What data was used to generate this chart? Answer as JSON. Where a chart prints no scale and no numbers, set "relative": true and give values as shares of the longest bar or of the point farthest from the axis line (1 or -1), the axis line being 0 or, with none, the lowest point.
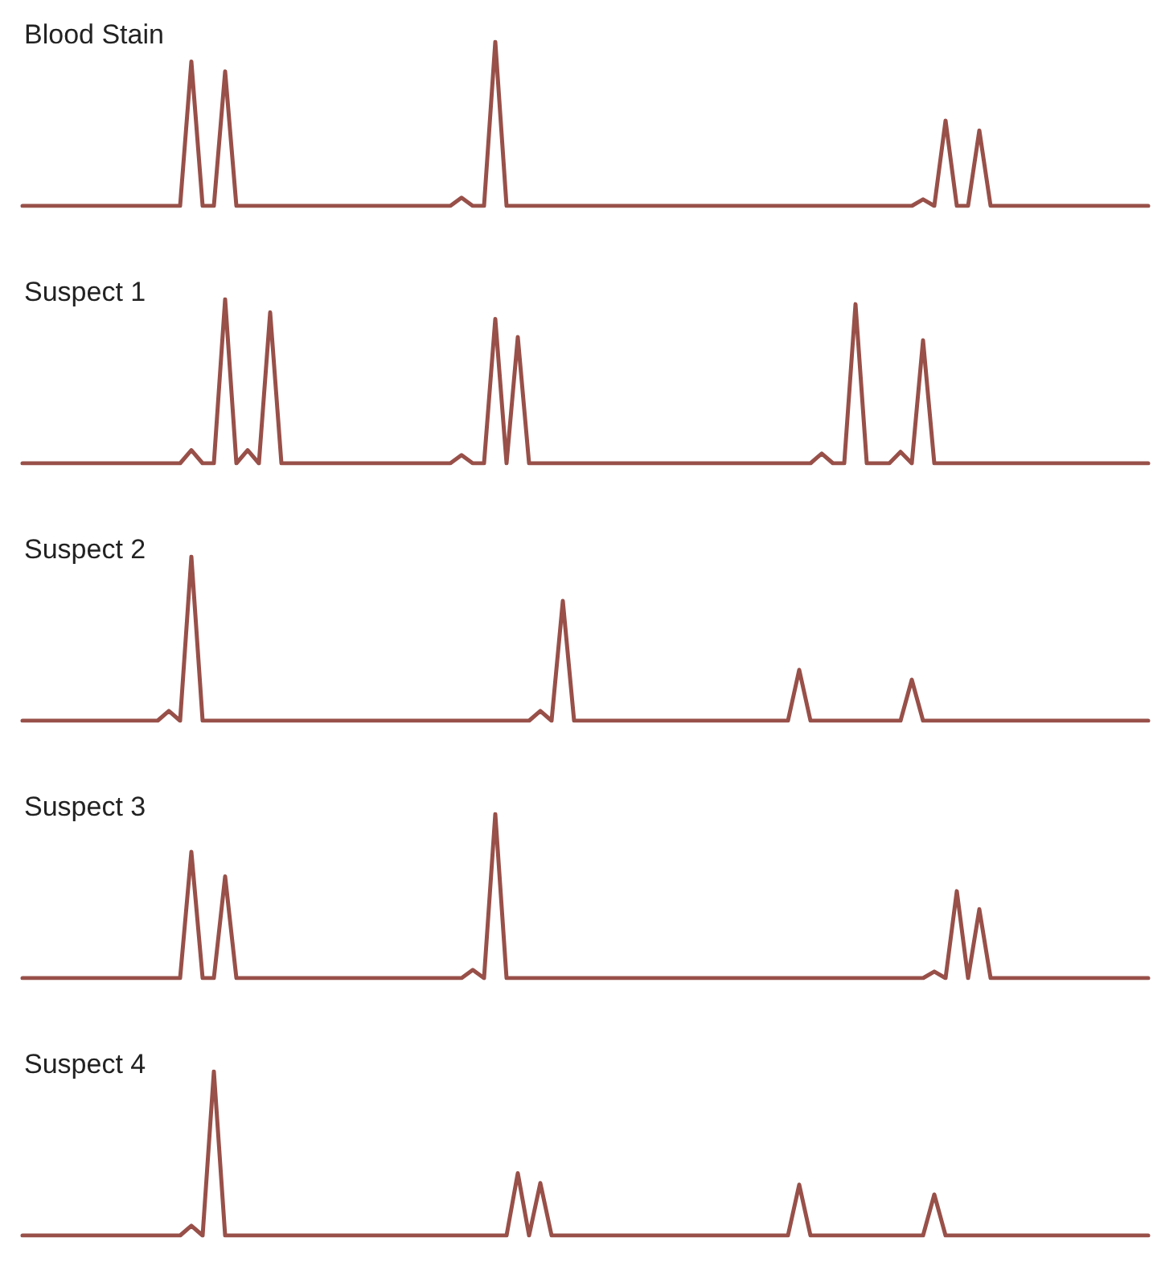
{
  "chart_data": [
    {
      "type": "line",
      "title": "Blood Stain",
      "relative": true,
      "color": "#985049",
      "categories": [
        null,
        null,
        null,
        null,
        null,
        null,
        null,
        null,
        null,
        null,
        null,
        null,
        null,
        null,
        null,
        null,
        null,
        null,
        null,
        null,
        null,
        null,
        null,
        null,
        null,
        null,
        null,
        null,
        null,
        null,
        null,
        null,
        null,
        null,
        null,
        null,
        null,
        null,
        null,
        null,
        null,
        null,
        null,
        null,
        null,
        null,
        null,
        null,
        null,
        null,
        null,
        null,
        null,
        null,
        null,
        null,
        null,
        null,
        null,
        null,
        null,
        null,
        null,
        null,
        null,
        null,
        null,
        null,
        null,
        null,
        null,
        null,
        null,
        null,
        null,
        null,
        null,
        null,
        null,
        null,
        null,
        null,
        null,
        null,
        null,
        null,
        null,
        null,
        null,
        null,
        null,
        null,
        null,
        null,
        null,
        null,
        null,
        null,
        null,
        null,
        null
      ],
      "values": [
        0,
        0,
        0,
        0,
        0,
        0,
        0,
        0,
        0,
        0,
        0,
        0,
        0,
        0,
        0,
        0.88,
        0,
        0,
        0.82,
        0,
        0,
        0,
        0,
        0,
        0,
        0,
        0,
        0,
        0,
        0,
        0,
        0,
        0,
        0,
        0,
        0,
        0,
        0,
        0,
        0.05,
        0,
        0,
        1,
        0,
        0,
        0,
        0,
        0,
        0,
        0,
        0,
        0,
        0,
        0,
        0,
        0,
        0,
        0,
        0,
        0,
        0,
        0,
        0,
        0,
        0,
        0,
        0,
        0,
        0,
        0,
        0,
        0,
        0,
        0,
        0,
        0,
        0,
        0,
        0,
        0,
        0.04,
        0,
        0.52,
        0,
        0,
        0.46,
        0,
        0,
        0,
        0,
        0,
        0,
        0,
        0,
        0,
        0,
        0,
        0,
        0,
        0,
        0
      ]
    },
    {
      "type": "line",
      "title": "Suspect 1",
      "relative": true,
      "color": "#985049",
      "categories": [
        null,
        null,
        null,
        null,
        null,
        null,
        null,
        null,
        null,
        null,
        null,
        null,
        null,
        null,
        null,
        null,
        null,
        null,
        null,
        null,
        null,
        null,
        null,
        null,
        null,
        null,
        null,
        null,
        null,
        null,
        null,
        null,
        null,
        null,
        null,
        null,
        null,
        null,
        null,
        null,
        null,
        null,
        null,
        null,
        null,
        null,
        null,
        null,
        null,
        null,
        null,
        null,
        null,
        null,
        null,
        null,
        null,
        null,
        null,
        null,
        null,
        null,
        null,
        null,
        null,
        null,
        null,
        null,
        null,
        null,
        null,
        null,
        null,
        null,
        null,
        null,
        null,
        null,
        null,
        null,
        null,
        null,
        null,
        null,
        null,
        null,
        null,
        null,
        null,
        null,
        null,
        null,
        null,
        null,
        null,
        null,
        null,
        null,
        null,
        null,
        null
      ],
      "values": [
        0,
        0,
        0,
        0,
        0,
        0,
        0,
        0,
        0,
        0,
        0,
        0,
        0,
        0,
        0,
        0.08,
        0,
        0,
        1,
        0,
        0.08,
        0,
        0.92,
        0,
        0,
        0,
        0,
        0,
        0,
        0,
        0,
        0,
        0,
        0,
        0,
        0,
        0,
        0,
        0,
        0.05,
        0,
        0,
        0.88,
        0,
        0.77,
        0,
        0,
        0,
        0,
        0,
        0,
        0,
        0,
        0,
        0,
        0,
        0,
        0,
        0,
        0,
        0,
        0,
        0,
        0,
        0,
        0,
        0,
        0,
        0,
        0,
        0,
        0.06,
        0,
        0,
        0.97,
        0,
        0,
        0,
        0.07,
        0,
        0.75,
        0,
        0,
        0,
        0,
        0,
        0,
        0,
        0,
        0,
        0,
        0,
        0,
        0,
        0,
        0,
        0,
        0,
        0,
        0,
        0
      ]
    },
    {
      "type": "line",
      "title": "Suspect 2",
      "relative": true,
      "color": "#985049",
      "categories": [
        null,
        null,
        null,
        null,
        null,
        null,
        null,
        null,
        null,
        null,
        null,
        null,
        null,
        null,
        null,
        null,
        null,
        null,
        null,
        null,
        null,
        null,
        null,
        null,
        null,
        null,
        null,
        null,
        null,
        null,
        null,
        null,
        null,
        null,
        null,
        null,
        null,
        null,
        null,
        null,
        null,
        null,
        null,
        null,
        null,
        null,
        null,
        null,
        null,
        null,
        null,
        null,
        null,
        null,
        null,
        null,
        null,
        null,
        null,
        null,
        null,
        null,
        null,
        null,
        null,
        null,
        null,
        null,
        null,
        null,
        null,
        null,
        null,
        null,
        null,
        null,
        null,
        null,
        null,
        null,
        null,
        null,
        null,
        null,
        null,
        null,
        null,
        null,
        null,
        null,
        null,
        null,
        null,
        null,
        null,
        null,
        null,
        null,
        null,
        null,
        null
      ],
      "values": [
        0,
        0,
        0,
        0,
        0,
        0,
        0,
        0,
        0,
        0,
        0,
        0,
        0,
        0.06,
        0,
        1,
        0,
        0,
        0,
        0,
        0,
        0,
        0,
        0,
        0,
        0,
        0,
        0,
        0,
        0,
        0,
        0,
        0,
        0,
        0,
        0,
        0,
        0,
        0,
        0,
        0,
        0,
        0,
        0,
        0,
        0,
        0.06,
        0,
        0.73,
        0,
        0,
        0,
        0,
        0,
        0,
        0,
        0,
        0,
        0,
        0,
        0,
        0,
        0,
        0,
        0,
        0,
        0,
        0,
        0,
        0.31,
        0,
        0,
        0,
        0,
        0,
        0,
        0,
        0,
        0,
        0.25,
        0,
        0,
        0,
        0,
        0,
        0,
        0,
        0,
        0,
        0,
        0,
        0,
        0,
        0,
        0,
        0,
        0,
        0,
        0,
        0,
        0
      ]
    },
    {
      "type": "line",
      "title": "Suspect 3",
      "relative": true,
      "color": "#985049",
      "categories": [
        null,
        null,
        null,
        null,
        null,
        null,
        null,
        null,
        null,
        null,
        null,
        null,
        null,
        null,
        null,
        null,
        null,
        null,
        null,
        null,
        null,
        null,
        null,
        null,
        null,
        null,
        null,
        null,
        null,
        null,
        null,
        null,
        null,
        null,
        null,
        null,
        null,
        null,
        null,
        null,
        null,
        null,
        null,
        null,
        null,
        null,
        null,
        null,
        null,
        null,
        null,
        null,
        null,
        null,
        null,
        null,
        null,
        null,
        null,
        null,
        null,
        null,
        null,
        null,
        null,
        null,
        null,
        null,
        null,
        null,
        null,
        null,
        null,
        null,
        null,
        null,
        null,
        null,
        null,
        null,
        null,
        null,
        null,
        null,
        null,
        null,
        null,
        null,
        null,
        null,
        null,
        null,
        null,
        null,
        null,
        null,
        null,
        null,
        null,
        null,
        null
      ],
      "values": [
        0,
        0,
        0,
        0,
        0,
        0,
        0,
        0,
        0,
        0,
        0,
        0,
        0,
        0,
        0,
        0.77,
        0,
        0,
        0.62,
        0,
        0,
        0,
        0,
        0,
        0,
        0,
        0,
        0,
        0,
        0,
        0,
        0,
        0,
        0,
        0,
        0,
        0,
        0,
        0,
        0,
        0.05,
        0,
        1,
        0,
        0,
        0,
        0,
        0,
        0,
        0,
        0,
        0,
        0,
        0,
        0,
        0,
        0,
        0,
        0,
        0,
        0,
        0,
        0,
        0,
        0,
        0,
        0,
        0,
        0,
        0,
        0,
        0,
        0,
        0,
        0,
        0,
        0,
        0,
        0,
        0,
        0,
        0.04,
        0,
        0.53,
        0,
        0.42,
        0,
        0,
        0,
        0,
        0,
        0,
        0,
        0,
        0,
        0,
        0,
        0,
        0,
        0,
        0
      ]
    },
    {
      "type": "line",
      "title": "Suspect 4",
      "relative": true,
      "color": "#985049",
      "categories": [
        null,
        null,
        null,
        null,
        null,
        null,
        null,
        null,
        null,
        null,
        null,
        null,
        null,
        null,
        null,
        null,
        null,
        null,
        null,
        null,
        null,
        null,
        null,
        null,
        null,
        null,
        null,
        null,
        null,
        null,
        null,
        null,
        null,
        null,
        null,
        null,
        null,
        null,
        null,
        null,
        null,
        null,
        null,
        null,
        null,
        null,
        null,
        null,
        null,
        null,
        null,
        null,
        null,
        null,
        null,
        null,
        null,
        null,
        null,
        null,
        null,
        null,
        null,
        null,
        null,
        null,
        null,
        null,
        null,
        null,
        null,
        null,
        null,
        null,
        null,
        null,
        null,
        null,
        null,
        null,
        null,
        null,
        null,
        null,
        null,
        null,
        null,
        null,
        null,
        null,
        null,
        null,
        null,
        null,
        null,
        null,
        null,
        null,
        null,
        null,
        null
      ],
      "values": [
        0,
        0,
        0,
        0,
        0,
        0,
        0,
        0,
        0,
        0,
        0,
        0,
        0,
        0,
        0,
        0.06,
        0,
        1,
        0,
        0,
        0,
        0,
        0,
        0,
        0,
        0,
        0,
        0,
        0,
        0,
        0,
        0,
        0,
        0,
        0,
        0,
        0,
        0,
        0,
        0,
        0,
        0,
        0,
        0,
        0.38,
        0,
        0.32,
        0,
        0,
        0,
        0,
        0,
        0,
        0,
        0,
        0,
        0,
        0,
        0,
        0,
        0,
        0,
        0,
        0,
        0,
        0,
        0,
        0,
        0,
        0.31,
        0,
        0,
        0,
        0,
        0,
        0,
        0,
        0,
        0,
        0,
        0,
        0.25,
        0,
        0,
        0,
        0,
        0,
        0,
        0,
        0,
        0,
        0,
        0,
        0,
        0,
        0,
        0,
        0,
        0,
        0,
        0
      ]
    }
  ]
}
